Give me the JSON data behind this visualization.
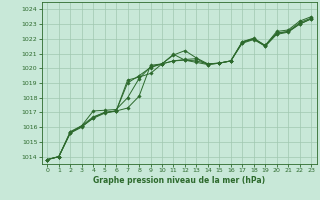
{
  "bg_color": "#c8e8d8",
  "grid_color": "#a0c8b0",
  "line_color": "#2d6a2d",
  "ylim": [
    1013.5,
    1024.5
  ],
  "xlim": [
    -0.5,
    23.5
  ],
  "yticks": [
    1014,
    1015,
    1016,
    1017,
    1018,
    1019,
    1020,
    1021,
    1022,
    1023,
    1024
  ],
  "xticks": [
    0,
    1,
    2,
    3,
    4,
    5,
    6,
    7,
    8,
    9,
    10,
    11,
    12,
    13,
    14,
    15,
    16,
    17,
    18,
    19,
    20,
    21,
    22,
    23
  ],
  "xlabel": "Graphe pression niveau de la mer (hPa)",
  "series": [
    [
      1013.8,
      1014.0,
      1015.6,
      1016.0,
      1016.65,
      1017.0,
      1017.1,
      1019.0,
      1019.5,
      1020.05,
      1020.3,
      1020.9,
      1021.2,
      1020.7,
      1020.3,
      1020.35,
      1020.5,
      1021.8,
      1022.0,
      1021.55,
      1022.5,
      1022.6,
      1023.2,
      1023.5
    ],
    [
      1013.8,
      1014.0,
      1015.6,
      1016.1,
      1017.1,
      1017.15,
      1017.2,
      1018.0,
      1019.3,
      1020.1,
      1020.3,
      1020.5,
      1020.55,
      1020.5,
      1020.3,
      1020.35,
      1020.5,
      1021.75,
      1022.0,
      1021.5,
      1022.35,
      1022.5,
      1023.0,
      1023.35
    ],
    [
      1013.8,
      1014.0,
      1015.65,
      1016.05,
      1016.6,
      1016.95,
      1017.1,
      1017.3,
      1018.1,
      1020.2,
      1020.3,
      1020.95,
      1020.55,
      1020.4,
      1020.25,
      1020.35,
      1020.5,
      1021.7,
      1021.95,
      1021.5,
      1022.3,
      1022.45,
      1023.0,
      1023.35
    ],
    [
      1013.8,
      1014.0,
      1015.7,
      1016.1,
      1016.7,
      1017.0,
      1017.1,
      1019.2,
      1019.4,
      1019.65,
      1020.3,
      1020.5,
      1020.6,
      1020.65,
      1020.25,
      1020.35,
      1020.5,
      1021.8,
      1022.05,
      1021.55,
      1022.4,
      1022.5,
      1023.1,
      1023.4
    ]
  ]
}
